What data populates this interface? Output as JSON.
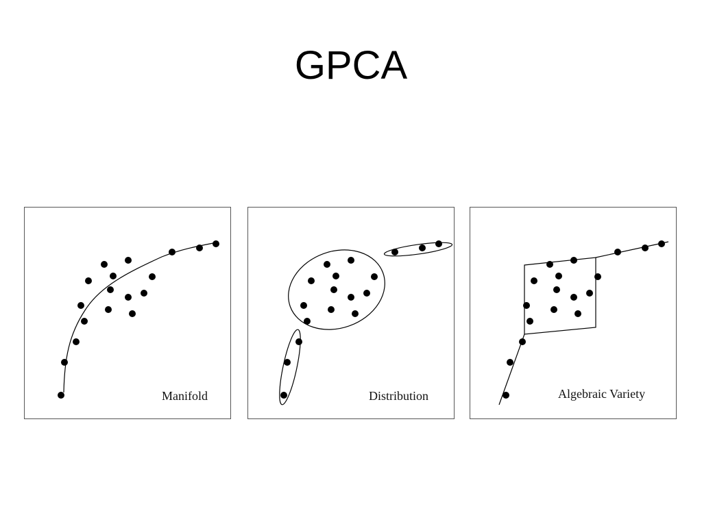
{
  "title": "GPCA",
  "colors": {
    "ink": "#000000",
    "frame": "#555555",
    "background": "#ffffff"
  },
  "panels": [
    {
      "id": "manifold",
      "label": "Manifold"
    },
    {
      "id": "distribution",
      "label": "Distribution"
    },
    {
      "id": "algebraic-variety",
      "label": "Algebraic Variety"
    }
  ]
}
